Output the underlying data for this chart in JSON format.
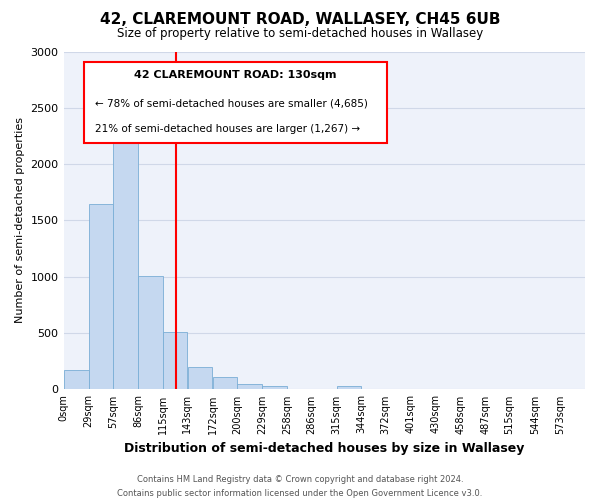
{
  "title": "42, CLAREMOUNT ROAD, WALLASEY, CH45 6UB",
  "subtitle": "Size of property relative to semi-detached houses in Wallasey",
  "xlabel": "Distribution of semi-detached houses by size in Wallasey",
  "ylabel": "Number of semi-detached properties",
  "bin_labels": [
    "0sqm",
    "29sqm",
    "57sqm",
    "86sqm",
    "115sqm",
    "143sqm",
    "172sqm",
    "200sqm",
    "229sqm",
    "258sqm",
    "286sqm",
    "315sqm",
    "344sqm",
    "372sqm",
    "401sqm",
    "430sqm",
    "458sqm",
    "487sqm",
    "515sqm",
    "544sqm",
    "573sqm"
  ],
  "bin_edges": [
    0,
    29,
    57,
    86,
    115,
    143,
    172,
    200,
    229,
    258,
    286,
    315,
    344,
    372,
    401,
    430,
    458,
    487,
    515,
    544,
    573,
    602
  ],
  "bar_heights": [
    175,
    1650,
    2275,
    1010,
    510,
    200,
    110,
    50,
    30,
    0,
    0,
    30,
    0,
    0,
    0,
    0,
    0,
    0,
    0,
    0,
    0
  ],
  "bar_color": "#c5d8f0",
  "bar_edge_color": "#7aaed6",
  "property_line_x": 130,
  "ylim": [
    0,
    3000
  ],
  "yticks": [
    0,
    500,
    1000,
    1500,
    2000,
    2500,
    3000
  ],
  "annotation_title": "42 CLAREMOUNT ROAD: 130sqm",
  "annotation_line1": "← 78% of semi-detached houses are smaller (4,685)",
  "annotation_line2": "21% of semi-detached houses are larger (1,267) →",
  "footer_line1": "Contains HM Land Registry data © Crown copyright and database right 2024.",
  "footer_line2": "Contains public sector information licensed under the Open Government Licence v3.0.",
  "grid_color": "#d0d8e8",
  "bg_color": "#eef2fa"
}
